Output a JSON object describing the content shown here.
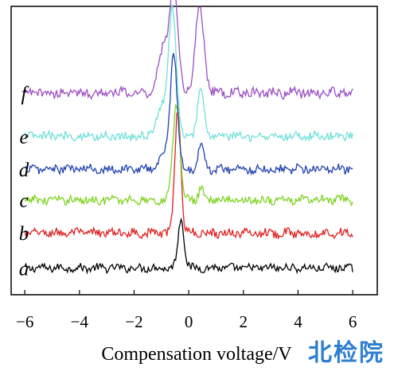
{
  "chart_data": {
    "type": "line",
    "title": "",
    "xlabel": "Compensation voltage/V",
    "ylabel": "",
    "xlim": [
      -6.5,
      6.9
    ],
    "ylim": [
      0,
      7
    ],
    "x_ticks": [
      -6,
      -4,
      -2,
      0,
      2,
      4,
      6
    ],
    "x_tick_labels": [
      "−6",
      "−4",
      "−2",
      "0",
      "2",
      "4",
      "6"
    ],
    "grid": false,
    "legend": "none",
    "series": [
      {
        "label": "a",
        "color": "#000000",
        "baseline": 0.65,
        "noise": 0.09,
        "peaks": [
          {
            "x": -0.28,
            "height": 1.2,
            "width": 0.11
          }
        ]
      },
      {
        "label": "b",
        "color": "#e02020",
        "baseline": 1.5,
        "noise": 0.1,
        "peaks": [
          {
            "x": -0.4,
            "height": 3.0,
            "width": 0.11
          }
        ]
      },
      {
        "label": "c",
        "color": "#7ed321",
        "baseline": 2.3,
        "noise": 0.1,
        "peaks": [
          {
            "x": -0.45,
            "height": 2.3,
            "width": 0.13
          },
          {
            "x": 0.45,
            "height": 0.3,
            "width": 0.1
          }
        ]
      },
      {
        "label": "d",
        "color": "#2040b0",
        "baseline": 3.05,
        "noise": 0.1,
        "peaks": [
          {
            "x": -0.55,
            "height": 2.8,
            "width": 0.13
          },
          {
            "x": 0.45,
            "height": 0.6,
            "width": 0.1
          },
          {
            "x": -0.95,
            "height": 0.35,
            "width": 0.15
          }
        ]
      },
      {
        "label": "e",
        "color": "#6fe0d8",
        "baseline": 3.85,
        "noise": 0.1,
        "peaks": [
          {
            "x": -0.6,
            "height": 3.1,
            "width": 0.14
          },
          {
            "x": 0.45,
            "height": 1.1,
            "width": 0.12
          },
          {
            "x": -1.0,
            "height": 0.7,
            "width": 0.18
          }
        ]
      },
      {
        "label": "f",
        "color": "#9b4fc4",
        "baseline": 4.9,
        "noise": 0.11,
        "peaks": [
          {
            "x": -0.55,
            "height": 2.5,
            "width": 0.16
          },
          {
            "x": 0.4,
            "height": 2.05,
            "width": 0.16
          },
          {
            "x": -0.95,
            "height": 1.0,
            "width": 0.18
          }
        ]
      }
    ]
  },
  "watermark": "北检院"
}
